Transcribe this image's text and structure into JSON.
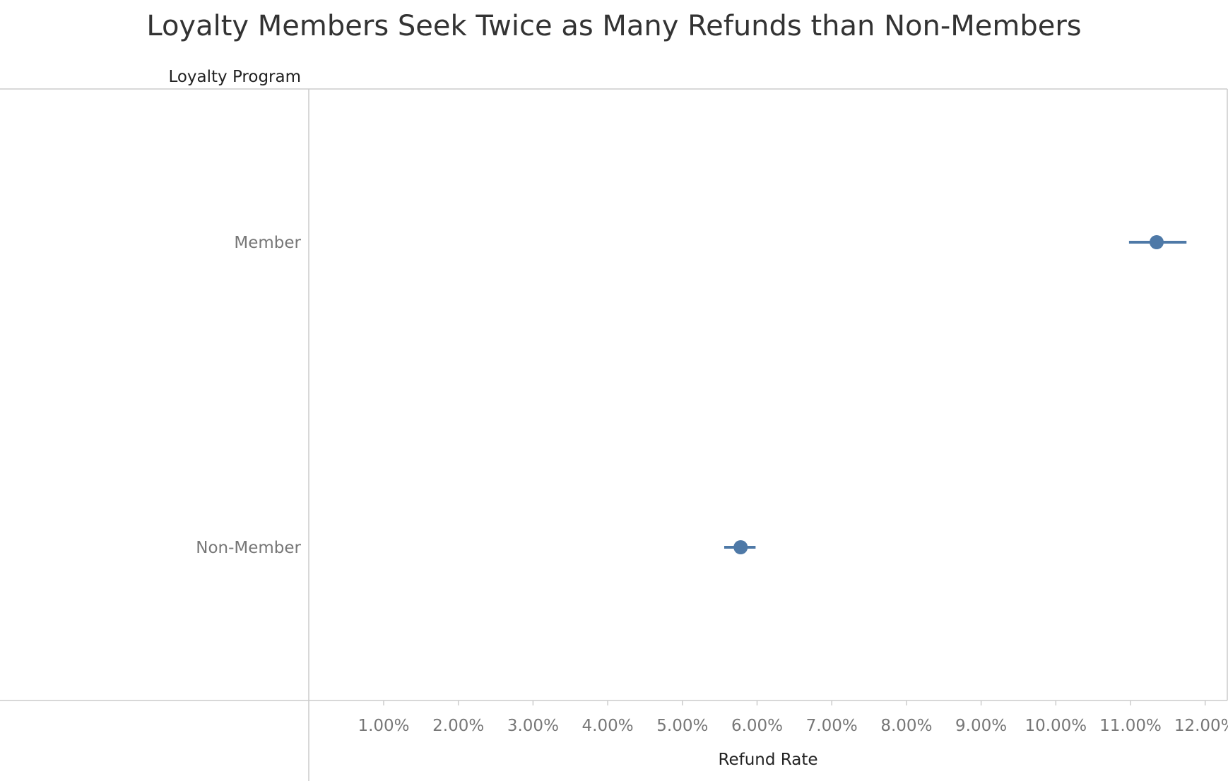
{
  "chart_data": {
    "type": "scatter",
    "title": "Loyalty Members Seek Twice as Many Refunds than Non-Members",
    "row_header": "Loyalty Program",
    "xlabel": "Refund Rate",
    "ylabel": "",
    "xlim": [
      0,
      12.3
    ],
    "x_ticks": [
      "1.00%",
      "2.00%",
      "3.00%",
      "4.00%",
      "5.00%",
      "6.00%",
      "7.00%",
      "8.00%",
      "9.00%",
      "10.00%",
      "11.00%",
      "12.00%"
    ],
    "x_tick_values": [
      1,
      2,
      3,
      4,
      5,
      6,
      7,
      8,
      9,
      10,
      11,
      12
    ],
    "categories": [
      "Member",
      "Non-Member"
    ],
    "points": [
      {
        "category": "Member",
        "value": 11.35,
        "ci_low": 10.98,
        "ci_high": 11.75
      },
      {
        "category": "Non-Member",
        "value": 5.78,
        "ci_low": 5.56,
        "ci_high": 5.98
      }
    ],
    "color": "#4e79a7",
    "grid": false
  }
}
